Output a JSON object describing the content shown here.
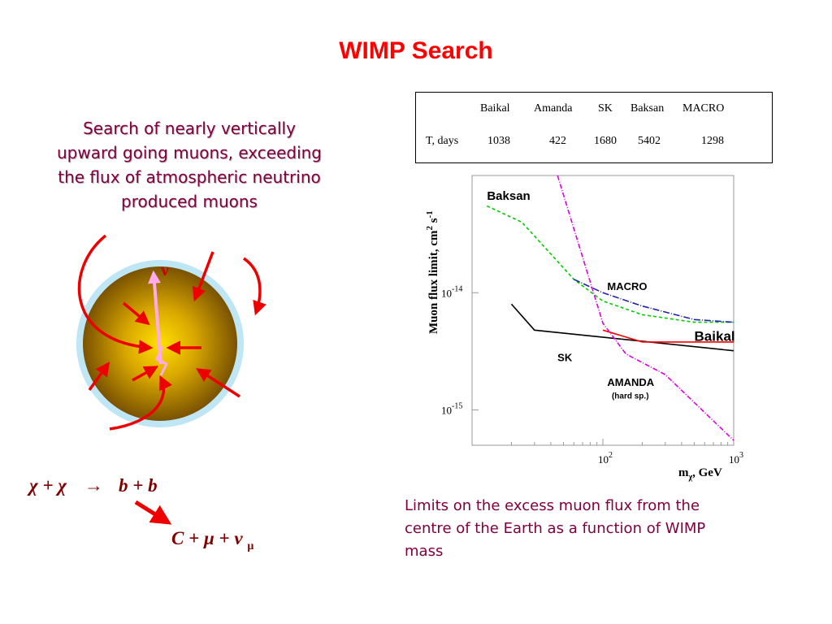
{
  "slide": {
    "title": "WIMP Search",
    "intro_lines": [
      "Search of nearly vertically",
      "upward going  muons, exceeding",
      "the flux of atmospheric neutrino",
      "produced muons"
    ],
    "caption_lines": [
      "Limits on the excess muon flux from the",
      "centre of the Earth as a function of WIMP",
      "mass"
    ],
    "nu_symbol": "ν",
    "reaction1": {
      "lhs": "χ + χ",
      "arrow": "→",
      "rhs": "b + b"
    },
    "reaction2": {
      "text": "C + μ + ν",
      "subscript": "μ"
    }
  },
  "exposure_table": {
    "header_empty": "",
    "experiments": [
      "Baikal",
      "Amanda",
      "SK",
      "Baksan",
      "MACRO"
    ],
    "row_label": "T, days",
    "days": [
      "1038",
      "422",
      "1680",
      "5402",
      "1298"
    ]
  },
  "chart_data": {
    "type": "line",
    "ylabel": "Muon flux limit, cm-2 s-1",
    "ylabel_parts": {
      "main": "Muon flux limit, cm",
      "sup1": "2",
      "mid": " s",
      "sup2": "-1"
    },
    "xlabel_parts": {
      "main": "m",
      "sub": "χ",
      "rest": ", GeV"
    },
    "x_scale": "log",
    "y_scale": "log",
    "xlim": [
      10,
      1000
    ],
    "ylim": [
      5e-16,
      1e-13
    ],
    "x_ticks": [
      {
        "value": 100,
        "base": "10",
        "exp": "2"
      },
      {
        "value": 1000,
        "base": "10",
        "exp": "3"
      }
    ],
    "y_ticks": [
      {
        "value": 1e-14,
        "base": "10",
        "exp": "-14"
      },
      {
        "value": 1e-15,
        "base": "10",
        "exp": "-15"
      }
    ],
    "grid": false,
    "series": [
      {
        "name": "Baksan",
        "color": "#00cc00",
        "dash": "4,3",
        "label": "Baksan",
        "label_x": 13,
        "label_y": 6.2e-14,
        "label_size": 15,
        "points": [
          [
            13,
            5.5e-14
          ],
          [
            24,
            4e-14
          ],
          [
            60,
            1.3e-14
          ],
          [
            100,
            8.5e-15
          ],
          [
            200,
            6.5e-15
          ],
          [
            500,
            5.6e-15
          ],
          [
            1000,
            5.6e-15
          ]
        ]
      },
      {
        "name": "MACRO",
        "color": "#2222aa",
        "dash": "8,2,1,2",
        "label": "MACRO",
        "label_x": 108,
        "label_y": 1.05e-14,
        "label_size": 13,
        "points": [
          [
            60,
            1.3e-14
          ],
          [
            100,
            1e-14
          ],
          [
            200,
            7.7e-15
          ],
          [
            500,
            5.9e-15
          ],
          [
            1000,
            5.6e-15
          ]
        ]
      },
      {
        "name": "SK",
        "color": "#000000",
        "dash": "",
        "label": "SK",
        "label_x": 45,
        "label_y": 2.6e-15,
        "label_size": 13,
        "points": [
          [
            20,
            8e-15
          ],
          [
            30,
            4.8e-15
          ],
          [
            1000,
            3.2e-15
          ]
        ]
      },
      {
        "name": "Baikal",
        "color": "#ff0000",
        "dash": "",
        "label": "Baikal",
        "label_x": 500,
        "label_y": 3.9e-15,
        "label_size": 17,
        "points": [
          [
            100,
            4.8e-15
          ],
          [
            200,
            3.8e-15
          ],
          [
            1000,
            3.8e-15
          ]
        ]
      },
      {
        "name": "AMANDA",
        "color": "#dd00dd",
        "dash": "6,2,1,2",
        "label": "AMANDA",
        "label_x": 108,
        "label_y": 1.6e-15,
        "label_size": 13,
        "sublabel": "(hard sp.)",
        "sublabel_x": 117,
        "sublabel_y": 1.25e-15,
        "points": [
          [
            45,
            1e-13
          ],
          [
            100,
            5.5e-15
          ],
          [
            150,
            3e-15
          ],
          [
            300,
            2e-15
          ],
          [
            1000,
            5.5e-16
          ]
        ]
      }
    ]
  }
}
